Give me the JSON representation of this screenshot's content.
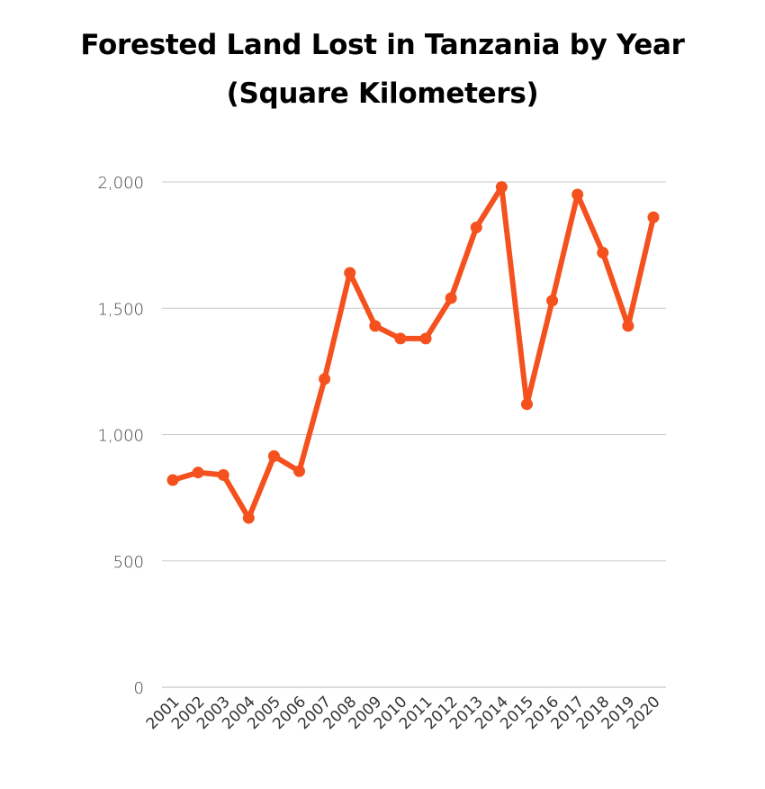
{
  "chart": {
    "title_line_1": "Forested Land Lost in Tanzania by Year",
    "title_line_2": "(Square Kilometers)",
    "line_color": "#f4511e",
    "grid_color": "#c8c8c8"
  },
  "chart_data": {
    "type": "line",
    "title": "Forested Land Lost in Tanzania by Year (Square Kilometers)",
    "xlabel": "",
    "ylabel": "",
    "categories": [
      "2001",
      "2002",
      "2003",
      "2004",
      "2005",
      "2006",
      "2007",
      "2008",
      "2009",
      "2010",
      "2011",
      "2012",
      "2013",
      "2014",
      "2015",
      "2016",
      "2017",
      "2018",
      "2019",
      "2020"
    ],
    "series": [
      {
        "values": [
          820,
          850,
          840,
          670,
          915,
          855,
          1220,
          1640,
          1430,
          1380,
          1380,
          1540,
          1820,
          1980,
          1120,
          1530,
          1950,
          1720,
          1430,
          1860
        ]
      }
    ],
    "ylim": [
      0,
      2000
    ],
    "yticks": [
      "0",
      "500",
      "1,000",
      "1,500",
      "2,000"
    ],
    "ytick_values": [
      0,
      500,
      1000,
      1500,
      2000
    ],
    "grid": true,
    "legend": "none"
  }
}
